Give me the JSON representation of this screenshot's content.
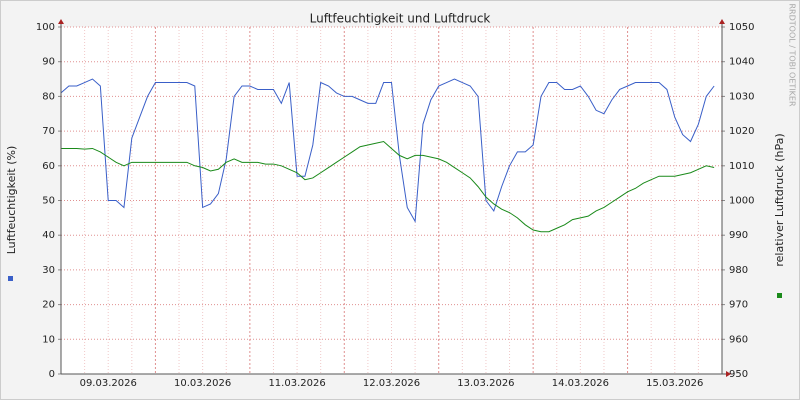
{
  "chart_data": {
    "type": "line",
    "title": "Luftfeuchtigkeit und Luftdruck",
    "y_label": "Luftfeuchtigkeit (%)",
    "y2_label": "relativer Luftdruck (hPa)",
    "credit": "RRDTOOL / TOBI OETIKER",
    "categories": [
      null,
      null,
      null,
      null,
      null,
      null,
      "09.03.2026",
      null,
      null,
      null,
      null,
      null,
      null,
      null,
      null,
      null,
      null,
      null,
      "10.03.2026",
      null,
      null,
      null,
      null,
      null,
      null,
      null,
      null,
      null,
      null,
      null,
      "11.03.2026",
      null,
      null,
      null,
      null,
      null,
      null,
      null,
      null,
      null,
      null,
      null,
      "12.03.2026",
      null,
      null,
      null,
      null,
      null,
      null,
      null,
      null,
      null,
      null,
      null,
      "13.03.2026",
      null,
      null,
      null,
      null,
      null,
      null,
      null,
      null,
      null,
      null,
      null,
      "14.03.2026",
      null,
      null,
      null,
      null,
      null,
      null,
      null,
      null,
      null,
      null,
      null,
      "15.03.2026",
      null,
      null,
      null,
      null,
      null
    ],
    "series": [
      {
        "color": "#3a5fc8",
        "values": [
          81,
          83,
          83,
          84,
          85,
          83,
          50,
          50,
          48,
          68,
          74,
          80,
          84,
          84,
          84,
          84,
          84,
          83,
          48,
          49,
          52,
          62,
          80,
          83,
          83,
          82,
          82,
          82,
          78,
          84,
          57,
          57,
          66,
          84,
          83,
          81,
          80,
          80,
          79,
          78,
          78,
          84,
          84,
          63,
          48,
          44,
          72,
          79,
          83,
          84,
          85,
          84,
          83,
          80,
          50,
          47,
          54,
          60,
          64,
          64,
          66,
          80,
          84,
          84,
          82,
          82,
          83,
          80,
          76,
          75,
          79,
          82,
          83,
          84,
          84,
          84,
          84,
          82,
          74,
          69,
          67,
          72,
          80,
          83
        ]
      },
      {
        "color": "#1a8a1a",
        "axis": "y2",
        "values": [
          1015,
          1015,
          1015,
          1014.8,
          1015,
          1014,
          1012.5,
          1011,
          1010,
          1011,
          1011,
          1011,
          1011,
          1011,
          1011,
          1011,
          1011,
          1010,
          1009.5,
          1008.5,
          1009,
          1011,
          1012,
          1011,
          1011,
          1011,
          1010.5,
          1010.5,
          1010,
          1009,
          1008,
          1006,
          1006.5,
          1008,
          1009.5,
          1011,
          1012.5,
          1014,
          1015.5,
          1016,
          1016.5,
          1017,
          1015,
          1013,
          1012,
          1013,
          1013,
          1012.5,
          1012,
          1011,
          1009.5,
          1008,
          1006.5,
          1004,
          1001,
          999,
          997.5,
          996.5,
          995,
          993,
          991.5,
          991,
          991,
          992,
          993,
          994.5,
          995,
          995.5,
          997,
          998,
          999.5,
          1001,
          1002.5,
          1003.5,
          1005,
          1006,
          1007,
          1007,
          1007,
          1007.5,
          1008,
          1009,
          1010,
          1009.5
        ]
      }
    ],
    "ylim": [
      0,
      100
    ],
    "yticks": [
      0,
      10,
      20,
      30,
      40,
      50,
      60,
      70,
      80,
      90,
      100
    ],
    "y2lim": [
      950,
      1050
    ],
    "y2ticks": [
      950,
      960,
      970,
      980,
      990,
      1000,
      1010,
      1020,
      1030,
      1040,
      1050
    ],
    "grid": true
  }
}
